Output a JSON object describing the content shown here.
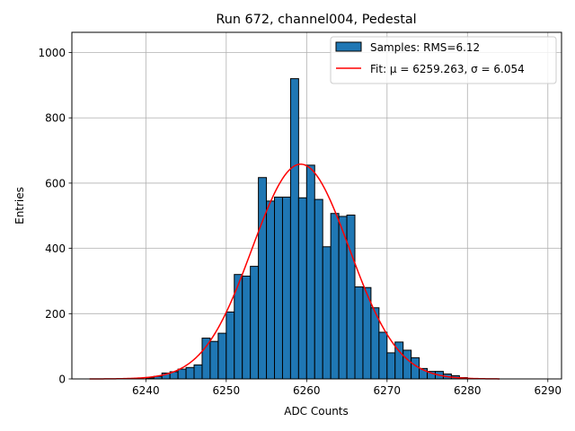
{
  "chart_data": {
    "type": "bar",
    "title": "Run 672, channel004, Pedestal",
    "xlabel": "ADC Counts",
    "ylabel": "Entries",
    "xlim": [
      6230.8,
      6291.7
    ],
    "ylim": [
      0,
      1062
    ],
    "xticks": [
      6240,
      6250,
      6260,
      6270,
      6280,
      6290
    ],
    "yticks": [
      0,
      200,
      400,
      600,
      800,
      1000
    ],
    "grid": true,
    "legend_position": "top-right",
    "histogram": {
      "name": "Samples: RMS=6.12",
      "color": "#1f77b4",
      "bin_edges": [
        6240,
        6241,
        6242,
        6243,
        6244,
        6245,
        6246,
        6247,
        6248,
        6249,
        6250,
        6251,
        6252,
        6253,
        6254,
        6255,
        6256,
        6257,
        6258,
        6259,
        6260,
        6261,
        6262,
        6263,
        6264,
        6265,
        6266,
        6267,
        6268,
        6269,
        6270,
        6271,
        6272,
        6273,
        6274,
        6275,
        6276,
        6277,
        6278,
        6279,
        6280
      ],
      "counts": [
        3,
        8,
        18,
        22,
        30,
        35,
        43,
        125,
        115,
        140,
        205,
        320,
        315,
        345,
        617,
        545,
        557,
        557,
        920,
        555,
        655,
        550,
        405,
        507,
        498,
        502,
        282,
        280,
        218,
        143,
        80,
        113,
        88,
        65,
        32,
        23,
        23,
        15,
        10,
        4
      ]
    },
    "fit": {
      "name": "Fit: μ = 6259.263, σ = 6.054",
      "color": "#ff0000",
      "mu": 6259.263,
      "sigma": 6.054,
      "amplitude": 658,
      "x_range": [
        6233.0,
        6284.0
      ]
    }
  }
}
